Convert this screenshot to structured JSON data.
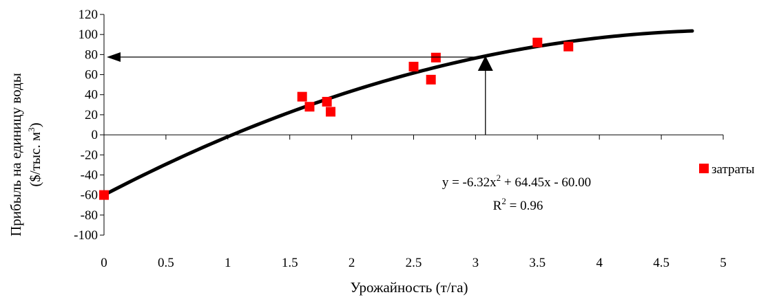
{
  "chart_data": {
    "type": "scatter",
    "xlabel": "Урожайность (т/га)",
    "ylabel_line1": "Прибыль на единицу воды",
    "ylabel_line2_pre": "($/тыс. м",
    "ylabel_line2_sup": "3",
    "ylabel_line2_post": ")",
    "xlim": [
      0,
      5
    ],
    "ylim": [
      -100,
      120
    ],
    "x_ticks": [
      0,
      0.5,
      1,
      1.5,
      2,
      2.5,
      3,
      3.5,
      4,
      4.5,
      5
    ],
    "x_tick_labels": [
      "0",
      "0.5",
      "1",
      "1.5",
      "2",
      "2.5",
      "3",
      "3.5",
      "4",
      "4.5",
      "5"
    ],
    "y_ticks": [
      -100,
      -80,
      -60,
      -40,
      -20,
      0,
      20,
      40,
      60,
      80,
      100,
      120
    ],
    "y_tick_labels": [
      "-100",
      "-80",
      "-60",
      "-40",
      "-20",
      "0",
      "20",
      "40",
      "60",
      "80",
      "100",
      "120"
    ],
    "series": [
      {
        "name": "затраты",
        "color": "#ff0000",
        "marker": "square",
        "x": [
          0.0,
          1.6,
          1.66,
          1.8,
          1.83,
          2.5,
          2.64,
          2.68,
          3.5,
          3.75
        ],
        "y": [
          -60,
          38,
          28,
          33,
          23,
          68,
          55,
          77,
          92,
          88
        ]
      }
    ],
    "trendline": {
      "type": "polynomial",
      "coefficients": {
        "a": -6.32,
        "b": 64.45,
        "c": -60.0
      },
      "x_range": [
        0,
        4.75
      ],
      "color": "#000000"
    },
    "equation": {
      "pre": "y = -6.32x",
      "sup": "2",
      "post": " + 64.45x - 60.00",
      "r_pre": "R",
      "r_sup": "2",
      "r_post": " = 0.96"
    },
    "annotation": {
      "x_value": 3.08,
      "y_value": 77.5
    },
    "legend": {
      "position": "right",
      "label": "затраты",
      "color": "#ff0000"
    },
    "grid": false
  }
}
